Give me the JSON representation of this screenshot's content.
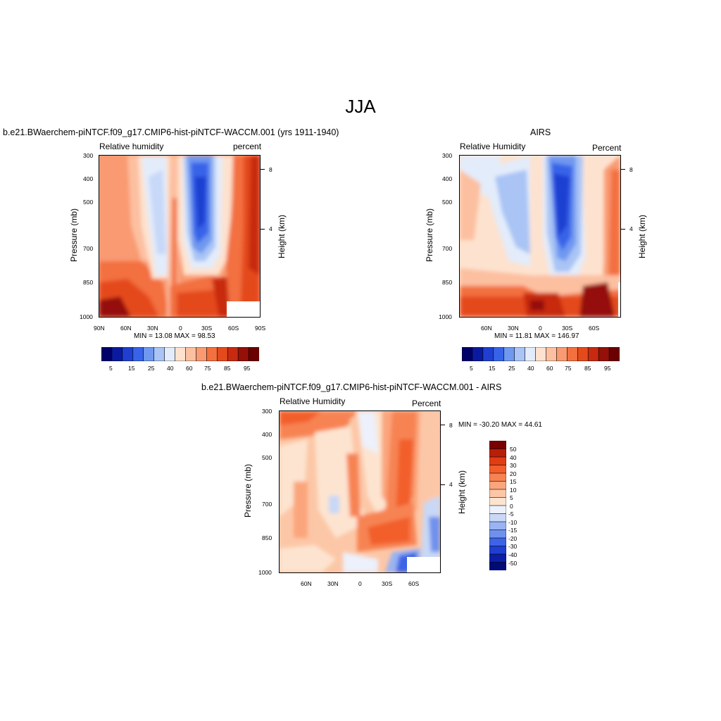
{
  "figure": {
    "title": "JJA"
  },
  "colors": {
    "abs_scale": [
      "#00006a",
      "#0a1aa0",
      "#1f3fd1",
      "#3763e8",
      "#6f98f0",
      "#a9c4f5",
      "#e3ecfa",
      "#fde2cf",
      "#fcc0a0",
      "#f99a72",
      "#f3703f",
      "#e44a1c",
      "#c72a10",
      "#951008",
      "#6a0000"
    ],
    "diff_scale": [
      "#000a78",
      "#0a1fa6",
      "#1e3fcf",
      "#3e63e6",
      "#6f91ee",
      "#9ab3f2",
      "#c8d8f6",
      "#ecf1fb",
      "#fde4d0",
      "#fcc7a7",
      "#fba57c",
      "#f78352",
      "#f25e2b",
      "#e03d14",
      "#b81f08",
      "#7a0000"
    ]
  },
  "panels": [
    {
      "title": "b.e21.BWaerchem-piNTCF.f09_g17.CMIP6-hist-piNTCF-WACCM.001 (yrs 1911-1940)",
      "left_label": "Relative humidity",
      "right_label": "percent",
      "minmax": "MIN =  13.08  MAX =  98.53",
      "y_label": "Pressure (mb)",
      "y_ticks": [
        "300",
        "400",
        "500",
        "700",
        "850",
        "1000"
      ],
      "x_ticks": [
        "90N",
        "60N",
        "30N",
        "0",
        "30S",
        "60S",
        "90S"
      ],
      "right_axis_label": "Height (km)",
      "right_ticks": [
        "8",
        "4"
      ],
      "colorbar_labels": [
        "5",
        "15",
        "25",
        "40",
        "60",
        "75",
        "85",
        "95"
      ]
    },
    {
      "title": "AIRS",
      "left_label": "Relative Humidity",
      "right_label": "Percent",
      "minmax": "MIN =  11.81  MAX = 146.97",
      "y_label": "Pressure (mb)",
      "y_ticks": [
        "300",
        "400",
        "500",
        "700",
        "850",
        "1000"
      ],
      "x_ticks": [
        "60N",
        "30N",
        "0",
        "30S",
        "60S"
      ],
      "right_axis_label": "Height (km)",
      "right_ticks": [
        "8",
        "4"
      ],
      "colorbar_labels": [
        "5",
        "15",
        "25",
        "40",
        "60",
        "75",
        "85",
        "95"
      ]
    },
    {
      "title": "b.e21.BWaerchem-piNTCF.f09_g17.CMIP6-hist-piNTCF-WACCM.001 - AIRS",
      "left_label": "Relative Humidity",
      "right_label": "Percent",
      "minmax": "MIN = -30.20  MAX =  44.61",
      "y_label": "Pressure (mb)",
      "y_ticks": [
        "300",
        "400",
        "500",
        "700",
        "850",
        "1000"
      ],
      "x_ticks": [
        "60N",
        "30N",
        "0",
        "30S",
        "60S"
      ],
      "right_axis_label": "Height (km)",
      "right_ticks": [
        "8",
        "4"
      ],
      "colorbar_labels": [
        "50",
        "40",
        "30",
        "20",
        "15",
        "10",
        "5",
        "0",
        "-5",
        "-10",
        "-15",
        "-20",
        "-30",
        "-40",
        "-50"
      ]
    }
  ],
  "chart_data": [
    {
      "type": "heatmap",
      "title": "b.e21.BWaerchem-piNTCF.f09_g17.CMIP6-hist-piNTCF-WACCM.001 (yrs 1911-1940)",
      "variable": "Relative humidity",
      "units": "percent",
      "xlabel": "",
      "ylabel": "Pressure (mb)",
      "x_ticks": [
        "90N",
        "60N",
        "30N",
        "0",
        "30S",
        "60S",
        "90S"
      ],
      "y_ticks": [
        300,
        400,
        500,
        700,
        850,
        1000
      ],
      "min": 13.08,
      "max": 98.53,
      "levels": [
        5,
        10,
        15,
        20,
        25,
        30,
        40,
        50,
        60,
        70,
        75,
        80,
        85,
        90,
        95
      ],
      "colorbar_labels": [
        "5",
        "15",
        "25",
        "40",
        "60",
        "75",
        "85",
        "95"
      ]
    },
    {
      "type": "heatmap",
      "title": "AIRS",
      "variable": "Relative Humidity",
      "units": "Percent",
      "xlabel": "",
      "ylabel": "Pressure (mb)",
      "x_ticks": [
        "60N",
        "30N",
        "0",
        "30S",
        "60S"
      ],
      "y_ticks": [
        300,
        400,
        500,
        700,
        850,
        1000
      ],
      "min": 11.81,
      "max": 146.97,
      "levels": [
        5,
        10,
        15,
        20,
        25,
        30,
        40,
        50,
        60,
        70,
        75,
        80,
        85,
        90,
        95
      ],
      "colorbar_labels": [
        "5",
        "15",
        "25",
        "40",
        "60",
        "75",
        "85",
        "95"
      ]
    },
    {
      "type": "heatmap",
      "title": "b.e21.BWaerchem-piNTCF.f09_g17.CMIP6-hist-piNTCF-WACCM.001 - AIRS",
      "variable": "Relative Humidity",
      "units": "Percent",
      "xlabel": "",
      "ylabel": "Pressure (mb)",
      "x_ticks": [
        "60N",
        "30N",
        "0",
        "30S",
        "60S"
      ],
      "y_ticks": [
        300,
        400,
        500,
        700,
        850,
        1000
      ],
      "min": -30.2,
      "max": 44.61,
      "levels": [
        -50,
        -40,
        -30,
        -20,
        -15,
        -10,
        -5,
        0,
        5,
        10,
        15,
        20,
        30,
        40,
        50
      ],
      "colorbar_labels": [
        "50",
        "40",
        "30",
        "20",
        "15",
        "10",
        "5",
        "0",
        "-5",
        "-10",
        "-15",
        "-20",
        "-30",
        "-40",
        "-50"
      ]
    }
  ]
}
